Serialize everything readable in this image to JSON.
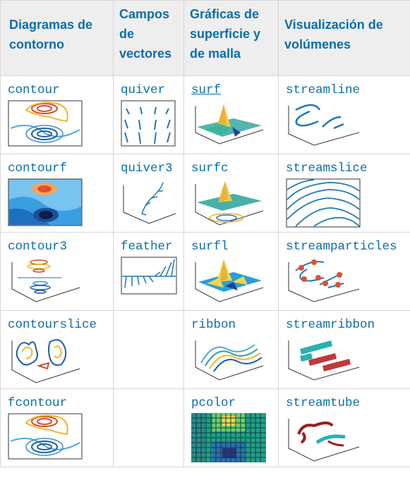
{
  "headers": [
    "Diagramas de contorno",
    "Campos de vectores",
    "Gráficas de superficie y de malla",
    "Visualización de volúmenes"
  ],
  "rows": [
    {
      "c1": "contour",
      "c2": "quiver",
      "c3": "surf",
      "c4": "streamline"
    },
    {
      "c1": "contourf",
      "c2": "quiver3",
      "c3": "surfc",
      "c4": "streamslice"
    },
    {
      "c1": "contour3",
      "c2": "feather",
      "c3": "surfl",
      "c4": "streamparticles"
    },
    {
      "c1": "contourslice",
      "c2": "",
      "c3": "ribbon",
      "c4": "streamribbon"
    },
    {
      "c1": "fcontour",
      "c2": "",
      "c3": "pcolor",
      "c4": "streamtube"
    }
  ],
  "colors": {
    "link": "#0b6ea9",
    "header_bg": "#eeeeee",
    "border": "#d7d7d7"
  }
}
